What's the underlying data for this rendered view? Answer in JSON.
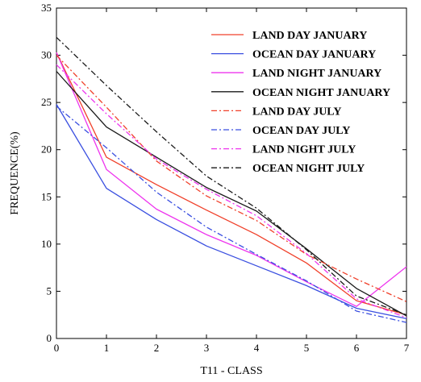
{
  "chart_data": {
    "type": "line",
    "xlabel": "T11 - CLASS",
    "ylabel": "FREQUENCE(%)",
    "x": [
      0,
      1,
      2,
      3,
      4,
      5,
      6,
      7
    ],
    "xlim": [
      0,
      7
    ],
    "ylim": [
      0,
      35
    ],
    "xticks": [
      "0",
      "1",
      "2",
      "3",
      "4",
      "5",
      "6",
      "7"
    ],
    "yticks": [
      "0",
      "5",
      "10",
      "15",
      "20",
      "25",
      "30",
      "35"
    ],
    "grid": false,
    "legend_position": "top-right",
    "series": [
      {
        "name": "LAND DAY JANUARY",
        "color": "#f0402a",
        "dash": "solid",
        "values": [
          30.3,
          19.2,
          16.3,
          13.6,
          11.0,
          8.0,
          4.0,
          2.5
        ]
      },
      {
        "name": "OCEAN DAY JANUARY",
        "color": "#3a4fe0",
        "dash": "solid",
        "values": [
          24.8,
          15.9,
          12.6,
          9.8,
          7.7,
          5.6,
          3.2,
          2.1
        ]
      },
      {
        "name": "LAND NIGHT JANUARY",
        "color": "#ee35ee",
        "dash": "solid",
        "values": [
          30.3,
          17.9,
          13.7,
          11.0,
          8.8,
          6.0,
          3.4,
          7.6
        ]
      },
      {
        "name": "OCEAN NIGHT JANUARY",
        "color": "#1a1a1a",
        "dash": "solid",
        "values": [
          28.3,
          22.4,
          19.2,
          16.0,
          13.5,
          9.5,
          5.3,
          2.4
        ]
      },
      {
        "name": "LAND DAY JULY",
        "color": "#f0402a",
        "dash": "dashdot",
        "values": [
          30.0,
          24.5,
          18.8,
          15.1,
          12.5,
          8.9,
          6.3,
          3.9
        ]
      },
      {
        "name": "OCEAN DAY JULY",
        "color": "#3a4fe0",
        "dash": "dashdot",
        "values": [
          24.6,
          20.2,
          15.5,
          11.8,
          8.9,
          6.1,
          2.9,
          1.7
        ]
      },
      {
        "name": "LAND NIGHT JULY",
        "color": "#ee35ee",
        "dash": "dashdot",
        "values": [
          29.0,
          23.8,
          19.0,
          15.8,
          13.0,
          9.0,
          4.2,
          2.2
        ]
      },
      {
        "name": "OCEAN NIGHT JULY",
        "color": "#1a1a1a",
        "dash": "dashdot",
        "values": [
          31.9,
          26.8,
          21.9,
          17.2,
          13.8,
          9.4,
          4.5,
          2.5
        ]
      }
    ]
  }
}
